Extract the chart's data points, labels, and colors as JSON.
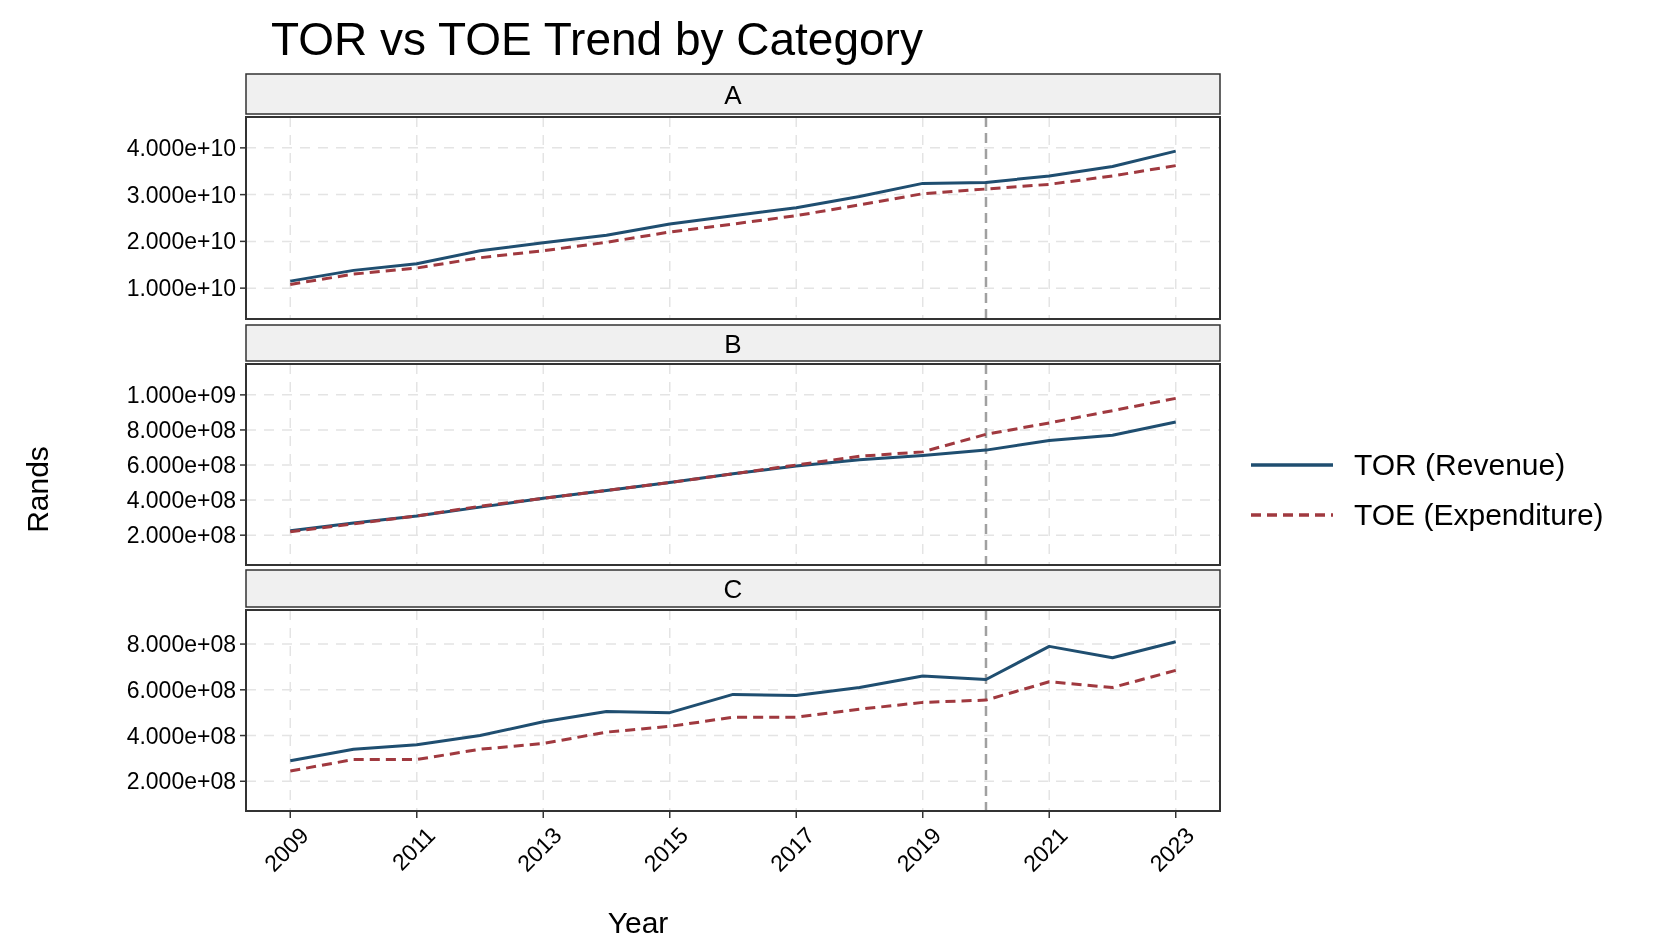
{
  "chart_data": [
    {
      "type": "line",
      "title": "TOR vs TOE Trend by Category",
      "subtitle": "A",
      "x": [
        2009,
        2010,
        2011,
        2012,
        2013,
        2014,
        2015,
        2016,
        2017,
        2018,
        2019,
        2020,
        2021,
        2022,
        2023
      ],
      "xlim": [
        2008.3,
        2023.7
      ],
      "xticks": [
        2009,
        2011,
        2013,
        2015,
        2017,
        2019,
        2021,
        2023
      ],
      "ylim": [
        3400000000.0,
        46600000000.0
      ],
      "yticks": [
        {
          "value": 10000000000.0,
          "label": "1.000e+10"
        },
        {
          "value": 20000000000.0,
          "label": "2.000e+10"
        },
        {
          "value": 30000000000.0,
          "label": "3.000e+10"
        },
        {
          "value": 40000000000.0,
          "label": "4.000e+10"
        }
      ],
      "grid": true,
      "tick_labels": "y",
      "ref_lines": [
        {
          "axis": "x",
          "value": 2020,
          "color": "#a0a0a0",
          "line_style": "dashed"
        }
      ],
      "series": [
        {
          "color": "#1f4e70",
          "line_style": "solid",
          "values": [
            11500000000.0,
            13800000000.0,
            15200000000.0,
            18000000000.0,
            19700000000.0,
            21300000000.0,
            23700000000.0,
            25500000000.0,
            27200000000.0,
            29600000000.0,
            32400000000.0,
            32600000000.0,
            34000000000.0,
            36000000000.0,
            39300000000.0
          ]
        },
        {
          "color": "#a0393f",
          "line_style": "dashed",
          "values": [
            10800000000.0,
            13000000000.0,
            14300000000.0,
            16500000000.0,
            18000000000.0,
            19800000000.0,
            22000000000.0,
            23700000000.0,
            25500000000.0,
            27800000000.0,
            30200000000.0,
            31200000000.0,
            32200000000.0,
            34000000000.0,
            36200000000.0
          ]
        }
      ]
    },
    {
      "type": "line",
      "subtitle": "B",
      "ylabel": "Rands",
      "legend": "right",
      "x": [
        2009,
        2010,
        2011,
        2012,
        2013,
        2014,
        2015,
        2016,
        2017,
        2018,
        2019,
        2020,
        2021,
        2022,
        2023
      ],
      "xlim": [
        2008.3,
        2023.7
      ],
      "xticks": [
        2009,
        2011,
        2013,
        2015,
        2017,
        2019,
        2021,
        2023
      ],
      "ylim": [
        30000000.0,
        1176000000.0
      ],
      "yticks": [
        {
          "value": 200000000.0,
          "label": "2.000e+08"
        },
        {
          "value": 400000000.0,
          "label": "4.000e+08"
        },
        {
          "value": 600000000.0,
          "label": "6.000e+08"
        },
        {
          "value": 800000000.0,
          "label": "8.000e+08"
        },
        {
          "value": 1000000000.0,
          "label": "1.000e+09"
        }
      ],
      "grid": true,
      "tick_labels": "y",
      "ref_lines": [
        {
          "axis": "x",
          "value": 2020,
          "color": "#a0a0a0",
          "line_style": "dashed"
        }
      ],
      "series": [
        {
          "name": "TOR (Revenue)",
          "color": "#1f4e70",
          "line_style": "solid",
          "values": [
            225000000.0,
            270000000.0,
            310000000.0,
            360000000.0,
            410000000.0,
            455000000.0,
            500000000.0,
            550000000.0,
            595000000.0,
            630000000.0,
            655000000.0,
            685000000.0,
            740000000.0,
            770000000.0,
            845000000.0
          ]
        },
        {
          "name": "TOE (Expenditure)",
          "color": "#a0393f",
          "line_style": "dashed",
          "values": [
            220000000.0,
            265000000.0,
            310000000.0,
            365000000.0,
            410000000.0,
            455000000.0,
            500000000.0,
            550000000.0,
            600000000.0,
            650000000.0,
            675000000.0,
            775000000.0,
            840000000.0,
            910000000.0,
            980000000.0
          ]
        }
      ]
    },
    {
      "type": "line",
      "subtitle": "C",
      "xlabel": "Year",
      "x": [
        2009,
        2010,
        2011,
        2012,
        2013,
        2014,
        2015,
        2016,
        2017,
        2018,
        2019,
        2020,
        2021,
        2022,
        2023
      ],
      "xlim": [
        2008.3,
        2023.7
      ],
      "xticks": [
        2009,
        2011,
        2013,
        2015,
        2017,
        2019,
        2021,
        2023
      ],
      "ylim": [
        70000000.0,
        949000000.0
      ],
      "yticks": [
        {
          "value": 200000000.0,
          "label": "2.000e+08"
        },
        {
          "value": 400000000.0,
          "label": "4.000e+08"
        },
        {
          "value": 600000000.0,
          "label": "6.000e+08"
        },
        {
          "value": 800000000.0,
          "label": "8.000e+08"
        }
      ],
      "grid": true,
      "ref_lines": [
        {
          "axis": "x",
          "value": 2020,
          "color": "#a0a0a0",
          "line_style": "dashed"
        }
      ],
      "series": [
        {
          "color": "#1f4e70",
          "line_style": "solid",
          "values": [
            290000000.0,
            340000000.0,
            360000000.0,
            400000000.0,
            460000000.0,
            505000000.0,
            500000000.0,
            580000000.0,
            575000000.0,
            610000000.0,
            660000000.0,
            645000000.0,
            790000000.0,
            740000000.0,
            810000000.0
          ]
        },
        {
          "color": "#a0393f",
          "line_style": "dashed",
          "values": [
            245000000.0,
            295000000.0,
            295000000.0,
            340000000.0,
            365000000.0,
            415000000.0,
            440000000.0,
            480000000.0,
            480000000.0,
            515000000.0,
            545000000.0,
            555000000.0,
            635000000.0,
            610000000.0,
            685000000.0
          ]
        }
      ]
    }
  ]
}
